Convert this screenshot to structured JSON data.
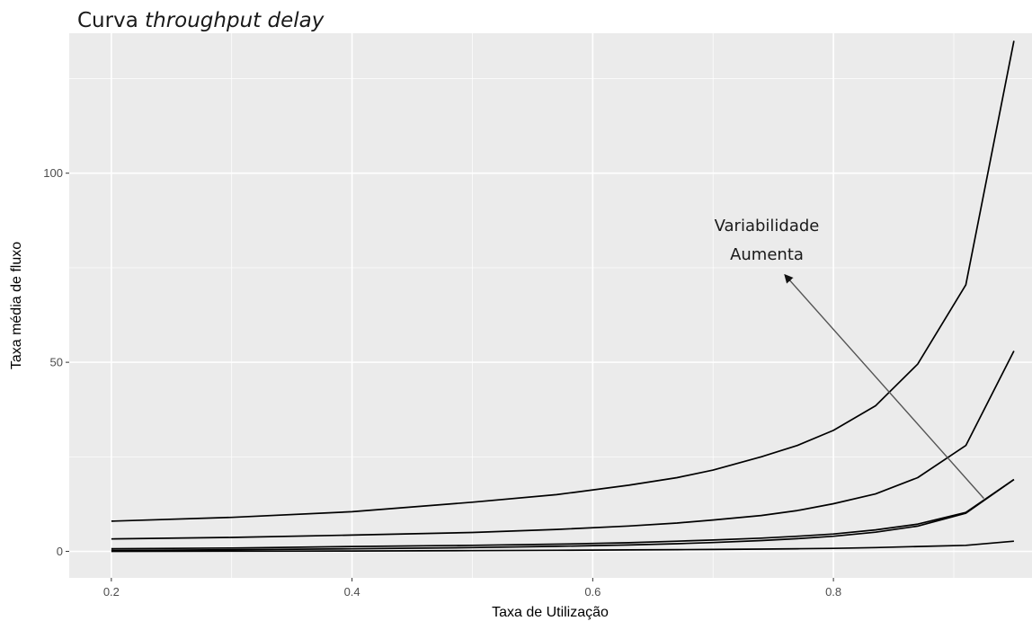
{
  "chart_data": {
    "type": "line",
    "title_prefix": "Curva ",
    "title_italic": "throughput delay",
    "xlabel": "Taxa de Utilização",
    "ylabel": "Taxa média de fluxo",
    "xlim": [
      0.165,
      0.965
    ],
    "ylim": [
      -7,
      137
    ],
    "x_ticks": [
      0.2,
      0.4,
      0.6,
      0.8
    ],
    "x_tick_labels": [
      "0.2",
      "0.4",
      "0.6",
      "0.8"
    ],
    "y_ticks": [
      0,
      50,
      100
    ],
    "y_tick_labels": [
      "0",
      "50",
      "100"
    ],
    "grid": true,
    "x": [
      0.2,
      0.3,
      0.4,
      0.5,
      0.57,
      0.63,
      0.67,
      0.7,
      0.74,
      0.77,
      0.8,
      0.835,
      0.87,
      0.91,
      0.95
    ],
    "series": [
      {
        "values": [
          0.25,
          0.43,
          0.67,
          1.0,
          1.33,
          1.7,
          2.03,
          2.33,
          2.85,
          3.35,
          4.0,
          5.06,
          6.69,
          10.11,
          19.0
        ]
      },
      {
        "values": [
          0.7,
          0.9,
          1.3,
          1.6,
          1.9,
          2.3,
          2.7,
          3.0,
          3.5,
          4.0,
          4.6,
          5.7,
          7.2,
          10.3,
          19.0
        ]
      },
      {
        "values": [
          3.3,
          3.7,
          4.3,
          5.0,
          5.8,
          6.7,
          7.5,
          8.3,
          9.5,
          10.8,
          12.6,
          15.2,
          19.5,
          28.0,
          53.0
        ]
      },
      {
        "values": [
          8.0,
          9.0,
          10.5,
          13.0,
          15.0,
          17.5,
          19.5,
          21.5,
          25.0,
          28.0,
          32.0,
          38.5,
          49.5,
          70.5,
          135.0
        ]
      },
      {
        "values": [
          0.0,
          0.05,
          0.1,
          0.2,
          0.3,
          0.4,
          0.45,
          0.5,
          0.6,
          0.7,
          0.8,
          1.0,
          1.3,
          1.6,
          2.7
        ]
      }
    ],
    "annotation": {
      "line1": "Variabilidade",
      "line2": "Aumenta",
      "arrow_from": [
        0.925,
        14
      ],
      "arrow_to": [
        0.76,
        73
      ]
    },
    "colors": {
      "panel": "#ebebeb",
      "grid_major": "#ffffff",
      "line": "#000000",
      "arrow": "#555555"
    }
  }
}
